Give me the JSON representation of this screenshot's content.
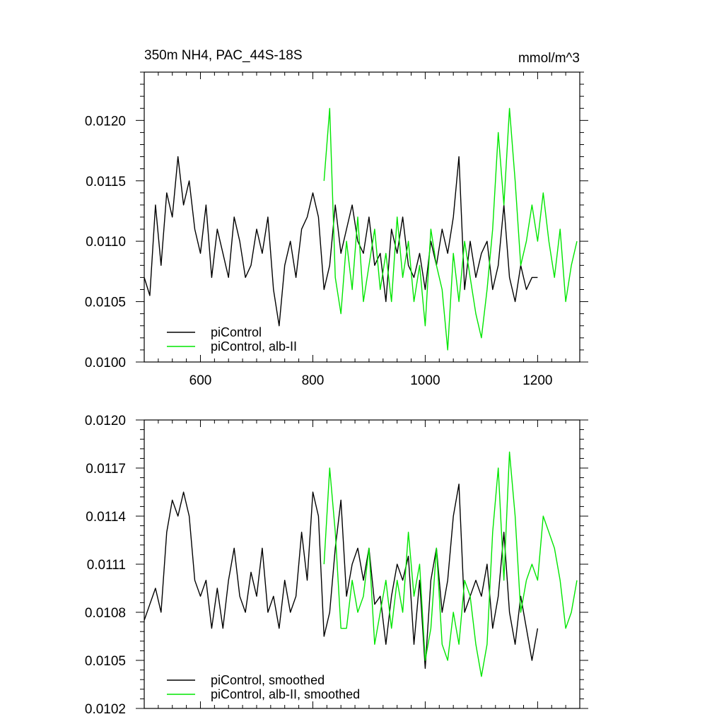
{
  "chart_data": [
    {
      "type": "line",
      "title": "350m NH4, PAC_44S-18S",
      "units": "mmol/m^3",
      "xlim": [
        500,
        1275
      ],
      "ylim": [
        0.01,
        0.0124
      ],
      "xticks": [
        600,
        800,
        1000,
        1200
      ],
      "xtick_labels": [
        "600",
        "800",
        "1000",
        "1200"
      ],
      "yticks": [
        0.01,
        0.0105,
        0.011,
        0.0115,
        0.012
      ],
      "ytick_labels": [
        "0.0100",
        "0.0105",
        "0.0110",
        "0.0115",
        "0.0120"
      ],
      "grid": false,
      "legend_position": "bottom-left",
      "series": [
        {
          "name": "piControl",
          "color": "#000000",
          "x": [
            500,
            510,
            520,
            530,
            540,
            550,
            560,
            570,
            580,
            590,
            600,
            610,
            620,
            630,
            640,
            650,
            660,
            670,
            680,
            690,
            700,
            710,
            720,
            730,
            740,
            750,
            760,
            770,
            780,
            790,
            800,
            810,
            820,
            830,
            840,
            850,
            860,
            870,
            880,
            890,
            900,
            910,
            920,
            930,
            940,
            950,
            960,
            970,
            980,
            990,
            1000,
            1010,
            1020,
            1030,
            1040,
            1050,
            1060,
            1070,
            1080,
            1090,
            1100,
            1110,
            1120,
            1130,
            1140,
            1150,
            1160,
            1170,
            1180,
            1190,
            1200
          ],
          "values": [
            0.0107,
            0.01055,
            0.0113,
            0.0108,
            0.0114,
            0.0112,
            0.0117,
            0.0113,
            0.0115,
            0.0111,
            0.0109,
            0.0113,
            0.0107,
            0.0111,
            0.0109,
            0.0107,
            0.0112,
            0.011,
            0.0107,
            0.0108,
            0.0111,
            0.0109,
            0.0112,
            0.0106,
            0.0103,
            0.0108,
            0.011,
            0.0107,
            0.0111,
            0.0112,
            0.0114,
            0.0112,
            0.0106,
            0.0108,
            0.0113,
            0.0109,
            0.0111,
            0.0113,
            0.011,
            0.0109,
            0.0112,
            0.0108,
            0.0109,
            0.0105,
            0.0111,
            0.0109,
            0.0112,
            0.0108,
            0.0107,
            0.0109,
            0.0106,
            0.011,
            0.0108,
            0.0111,
            0.0109,
            0.0112,
            0.0117,
            0.0106,
            0.011,
            0.0107,
            0.0109,
            0.011,
            0.0106,
            0.0108,
            0.0113,
            0.0107,
            0.0105,
            0.0108,
            0.0106,
            0.0107,
            0.0107
          ]
        },
        {
          "name": "piControl, alb-II",
          "color": "#00e600",
          "x": [
            820,
            830,
            840,
            850,
            860,
            870,
            880,
            890,
            900,
            910,
            920,
            930,
            940,
            950,
            960,
            970,
            980,
            990,
            1000,
            1010,
            1020,
            1030,
            1040,
            1050,
            1060,
            1070,
            1080,
            1090,
            1100,
            1110,
            1120,
            1130,
            1140,
            1150,
            1160,
            1170,
            1180,
            1190,
            1200,
            1210,
            1220,
            1230,
            1240,
            1250,
            1260,
            1270
          ],
          "values": [
            0.0115,
            0.0121,
            0.0107,
            0.0104,
            0.011,
            0.0106,
            0.0112,
            0.0105,
            0.0108,
            0.0111,
            0.0106,
            0.0109,
            0.0105,
            0.0112,
            0.0107,
            0.011,
            0.0105,
            0.0108,
            0.0103,
            0.0111,
            0.0108,
            0.0106,
            0.0101,
            0.0109,
            0.0105,
            0.011,
            0.0107,
            0.0104,
            0.0102,
            0.0106,
            0.0111,
            0.0119,
            0.0113,
            0.0121,
            0.0115,
            0.0108,
            0.011,
            0.0113,
            0.011,
            0.0114,
            0.011,
            0.0107,
            0.0111,
            0.0105,
            0.0108,
            0.011
          ]
        }
      ]
    },
    {
      "type": "line",
      "xlim": [
        500,
        1275
      ],
      "ylim": [
        0.0102,
        0.012
      ],
      "xticks": [
        600,
        800,
        1000,
        1200
      ],
      "yticks": [
        0.0102,
        0.0105,
        0.0108,
        0.0111,
        0.0114,
        0.0117,
        0.012
      ],
      "ytick_labels": [
        "0.0102",
        "0.0105",
        "0.0108",
        "0.0111",
        "0.0114",
        "0.0117",
        "0.0120"
      ],
      "grid": false,
      "legend_position": "bottom-left",
      "series": [
        {
          "name": "piControl, smoothed",
          "color": "#000000",
          "x": [
            500,
            510,
            520,
            530,
            540,
            550,
            560,
            570,
            580,
            590,
            600,
            610,
            620,
            630,
            640,
            650,
            660,
            670,
            680,
            690,
            700,
            710,
            720,
            730,
            740,
            750,
            760,
            770,
            780,
            790,
            800,
            810,
            820,
            830,
            840,
            850,
            860,
            870,
            880,
            890,
            900,
            910,
            920,
            930,
            940,
            950,
            960,
            970,
            980,
            990,
            1000,
            1010,
            1020,
            1030,
            1040,
            1050,
            1060,
            1070,
            1080,
            1090,
            1100,
            1110,
            1120,
            1130,
            1140,
            1150,
            1160,
            1170,
            1180,
            1190,
            1200
          ],
          "values": [
            0.01075,
            0.01085,
            0.01095,
            0.0108,
            0.0113,
            0.0115,
            0.0114,
            0.01155,
            0.0114,
            0.011,
            0.0109,
            0.011,
            0.0107,
            0.01095,
            0.0107,
            0.011,
            0.0112,
            0.0109,
            0.0108,
            0.01105,
            0.0109,
            0.0112,
            0.0108,
            0.0109,
            0.0107,
            0.011,
            0.0108,
            0.0109,
            0.0113,
            0.011,
            0.01155,
            0.0114,
            0.01065,
            0.0108,
            0.0112,
            0.0115,
            0.0109,
            0.0111,
            0.0112,
            0.011,
            0.0112,
            0.01085,
            0.0109,
            0.0106,
            0.0109,
            0.0111,
            0.011,
            0.01115,
            0.0106,
            0.011,
            0.01045,
            0.011,
            0.0112,
            0.0108,
            0.011,
            0.0114,
            0.0116,
            0.0108,
            0.0109,
            0.011,
            0.0109,
            0.0111,
            0.0107,
            0.0109,
            0.0113,
            0.0108,
            0.0106,
            0.0109,
            0.0107,
            0.0105,
            0.0107
          ]
        },
        {
          "name": "piControl, alb-II, smoothed",
          "color": "#00e600",
          "x": [
            820,
            830,
            840,
            850,
            860,
            870,
            880,
            890,
            900,
            910,
            920,
            930,
            940,
            950,
            960,
            970,
            980,
            990,
            1000,
            1010,
            1020,
            1030,
            1040,
            1050,
            1060,
            1070,
            1080,
            1090,
            1100,
            1110,
            1120,
            1130,
            1140,
            1150,
            1160,
            1170,
            1180,
            1190,
            1200,
            1210,
            1220,
            1230,
            1240,
            1250,
            1260,
            1270
          ],
          "values": [
            0.0111,
            0.0117,
            0.0113,
            0.0107,
            0.0107,
            0.011,
            0.0108,
            0.0109,
            0.0112,
            0.0106,
            0.0108,
            0.011,
            0.0107,
            0.011,
            0.0108,
            0.0113,
            0.0109,
            0.0111,
            0.0105,
            0.0107,
            0.0112,
            0.0106,
            0.0105,
            0.0108,
            0.0106,
            0.011,
            0.0109,
            0.0106,
            0.0104,
            0.0106,
            0.0113,
            0.0117,
            0.011,
            0.0118,
            0.0114,
            0.0108,
            0.011,
            0.0111,
            0.011,
            0.0114,
            0.0113,
            0.0112,
            0.011,
            0.0107,
            0.0108,
            0.011
          ]
        }
      ]
    }
  ]
}
